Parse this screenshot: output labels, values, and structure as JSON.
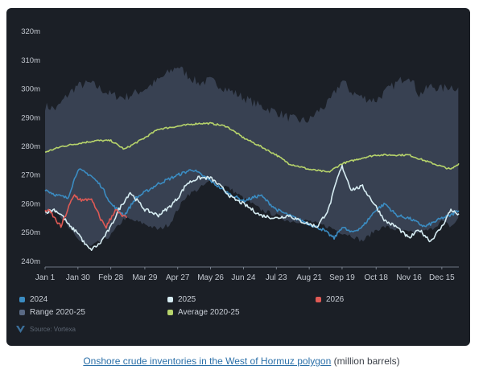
{
  "chart_data": {
    "type": "line",
    "title": "Onshore crude inventories in the West of Hormuz polygon",
    "units": "million barrels",
    "y_unit_suffix": "m",
    "x_domain": [
      0,
      365
    ],
    "ylim": [
      238,
      322
    ],
    "y_ticks": [
      240,
      250,
      260,
      270,
      280,
      290,
      300,
      310,
      320
    ],
    "x_ticks": [
      {
        "day": 0,
        "label": "Jan 1"
      },
      {
        "day": 29,
        "label": "Jan 30"
      },
      {
        "day": 58,
        "label": "Feb 28"
      },
      {
        "day": 88,
        "label": "Mar 29"
      },
      {
        "day": 117,
        "label": "Apr 27"
      },
      {
        "day": 146,
        "label": "May 26"
      },
      {
        "day": 175,
        "label": "Jun 24"
      },
      {
        "day": 204,
        "label": "Jul 23"
      },
      {
        "day": 233,
        "label": "Aug 21"
      },
      {
        "day": 262,
        "label": "Sep 19"
      },
      {
        "day": 292,
        "label": "Oct 18"
      },
      {
        "day": 321,
        "label": "Nov 16"
      },
      {
        "day": 350,
        "label": "Dec 15"
      }
    ],
    "range": {
      "name": "Range 2020-25",
      "color": "#3b4456",
      "days": [
        0,
        10,
        20,
        28,
        40,
        58,
        70,
        88,
        100,
        110,
        117,
        125,
        135,
        146,
        160,
        175,
        190,
        204,
        215,
        225,
        233,
        240,
        250,
        262,
        270,
        280,
        292,
        300,
        310,
        321,
        330,
        340,
        350,
        358,
        365
      ],
      "low": [
        256,
        258,
        252,
        248,
        245,
        249,
        255,
        253,
        251,
        253,
        258,
        263,
        265,
        268,
        266,
        262,
        258,
        256,
        254,
        254,
        254,
        253,
        252,
        250,
        249,
        247,
        251,
        252,
        251,
        250,
        250,
        251,
        254,
        252,
        255
      ],
      "high": [
        294,
        293,
        298,
        301,
        302,
        298,
        297,
        300,
        303,
        306,
        308,
        305,
        302,
        303,
        300,
        297,
        294,
        292,
        290,
        289,
        289,
        292,
        295,
        303,
        299,
        297,
        296,
        299,
        302,
        305,
        298,
        301,
        300,
        301,
        300
      ]
    },
    "series": [
      {
        "name": "Average 2020-25",
        "color": "#b7d46b",
        "days": [
          0,
          15,
          29,
          45,
          58,
          70,
          88,
          100,
          117,
          135,
          146,
          160,
          175,
          190,
          204,
          215,
          233,
          250,
          262,
          280,
          292,
          310,
          321,
          335,
          350,
          358,
          365
        ],
        "values": [
          278,
          280,
          281,
          282,
          282,
          279,
          283,
          286,
          287,
          288,
          288,
          287,
          283,
          280,
          277,
          274,
          272,
          271,
          274,
          276,
          277,
          277,
          277,
          275,
          273,
          272,
          274
        ]
      },
      {
        "name": "2024",
        "color": "#3b8cc2",
        "days": [
          0,
          10,
          20,
          29,
          40,
          50,
          58,
          70,
          80,
          88,
          100,
          117,
          130,
          146,
          160,
          175,
          190,
          204,
          215,
          233,
          245,
          255,
          262,
          270,
          280,
          292,
          300,
          310,
          321,
          335,
          350,
          358,
          365
        ],
        "values": [
          265,
          263,
          262,
          272,
          270,
          266,
          260,
          256,
          262,
          264,
          267,
          270,
          272,
          268,
          264,
          261,
          263,
          258,
          256,
          253,
          251,
          248,
          252,
          250,
          252,
          258,
          260,
          256,
          255,
          252,
          255,
          256,
          258
        ]
      },
      {
        "name": "2025",
        "color": "#d6ecf2",
        "days": [
          0,
          8,
          15,
          22,
          29,
          35,
          40,
          48,
          58,
          65,
          75,
          88,
          100,
          110,
          117,
          125,
          135,
          146,
          155,
          165,
          175,
          190,
          204,
          215,
          225,
          233,
          240,
          250,
          258,
          262,
          270,
          280,
          292,
          300,
          310,
          321,
          330,
          340,
          350,
          358,
          365
        ],
        "values": [
          257,
          258,
          256,
          252,
          250,
          246,
          244,
          246,
          252,
          258,
          264,
          258,
          256,
          259,
          262,
          267,
          269,
          269,
          266,
          262,
          260,
          256,
          255,
          256,
          254,
          253,
          252,
          258,
          269,
          273,
          265,
          266,
          259,
          254,
          252,
          248,
          251,
          247,
          252,
          258,
          256
        ]
      },
      {
        "name": "2026",
        "color": "#e05a55",
        "days": [
          0,
          5,
          10,
          14,
          18,
          22,
          26,
          29,
          34,
          40,
          45,
          50,
          54,
          58,
          62,
          67,
          72
        ],
        "values": [
          258,
          257,
          254,
          252,
          256,
          260,
          263,
          262,
          261,
          262,
          258,
          254,
          252,
          255,
          258,
          256,
          255
        ]
      }
    ]
  },
  "legend": [
    {
      "label": "2024",
      "color": "#3b8cc2"
    },
    {
      "label": "2025",
      "color": "#d6ecf2"
    },
    {
      "label": "2026",
      "color": "#e05a55"
    },
    {
      "label": "Range 2020-25",
      "color": "#5a6a85"
    },
    {
      "label": "Average 2020-25",
      "color": "#b7d46b"
    }
  ],
  "source": "Source: Vortexa",
  "caption": {
    "link_text": "Onshore crude inventories in the West of Hormuz polygon",
    "suffix": " (million barrels)"
  }
}
